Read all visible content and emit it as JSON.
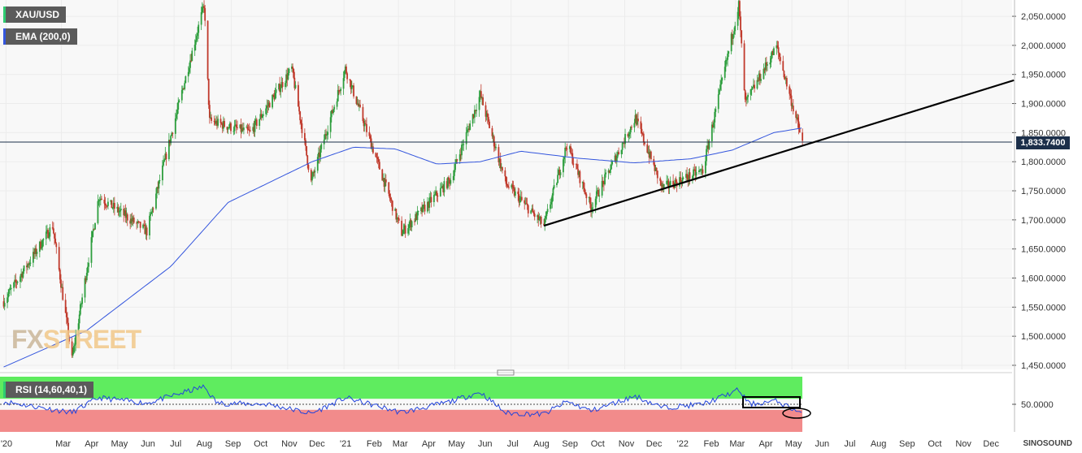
{
  "symbol_tag": "XAU/USD",
  "ema_tag": "EMA (200,0)",
  "rsi_tag": "RSI (14,60,40,1)",
  "watermark_left": "FX",
  "watermark_right": "STREET",
  "brand": "SINOSOUND",
  "last_price_label": "1,833.7400",
  "colors": {
    "ema": "#3355dd",
    "rsi": "#2244dd",
    "rsi_upper_zone": "#5fec5f",
    "rsi_lower_zone": "#f28b8b",
    "candle_up": "#2e9e3e",
    "candle_down": "#c0392b",
    "trendline": "#000000",
    "price_line": "#1c2f4a"
  },
  "chart_data": {
    "type": "candlestick",
    "price_axis": {
      "ticks": [
        "2,050.0000",
        "2,000.0000",
        "1,950.0000",
        "1,900.0000",
        "1,850.0000",
        "1,800.0000",
        "1,750.0000",
        "1,700.0000",
        "1,650.0000",
        "1,600.0000",
        "1,550.0000",
        "1,500.0000",
        "1,450.0000"
      ],
      "range": [
        1443,
        2078
      ]
    },
    "rsi_axis": {
      "ticks": [
        "50.0000"
      ],
      "range": [
        0,
        100
      ]
    },
    "time_axis": {
      "labels": [
        "'20",
        "Mar",
        "Apr",
        "May",
        "Jun",
        "Jul",
        "Aug",
        "Sep",
        "Oct",
        "Nov",
        "Dec",
        "'21",
        "Feb",
        "Mar",
        "Apr",
        "May",
        "Jun",
        "Jul",
        "Aug",
        "Sep",
        "Oct",
        "Nov",
        "Dec",
        "'22",
        "Feb",
        "Mar",
        "Apr",
        "May",
        "Jun",
        "Jul",
        "Aug",
        "Sep",
        "Oct",
        "Nov",
        "Dec"
      ]
    },
    "last_price": 1833.74,
    "price_path": [
      [
        "2020-01-02",
        1560
      ],
      [
        "2020-02-24",
        1690
      ],
      [
        "2020-03-16",
        1460
      ],
      [
        "2020-04-14",
        1740
      ],
      [
        "2020-06-05",
        1680
      ],
      [
        "2020-08-06",
        2070
      ],
      [
        "2020-08-12",
        1870
      ],
      [
        "2020-09-25",
        1850
      ],
      [
        "2020-11-09",
        1960
      ],
      [
        "2020-11-30",
        1765
      ],
      [
        "2021-01-06",
        1960
      ],
      [
        "2021-03-08",
        1678
      ],
      [
        "2021-04-30",
        1770
      ],
      [
        "2021-06-01",
        1915
      ],
      [
        "2021-06-29",
        1762
      ],
      [
        "2021-08-09",
        1690
      ],
      [
        "2021-09-03",
        1830
      ],
      [
        "2021-09-29",
        1722
      ],
      [
        "2021-11-16",
        1875
      ],
      [
        "2021-12-15",
        1755
      ],
      [
        "2022-01-28",
        1785
      ],
      [
        "2022-03-08",
        2070
      ],
      [
        "2022-03-15",
        1900
      ],
      [
        "2022-04-18",
        1998
      ],
      [
        "2022-05-16",
        1833.74
      ]
    ],
    "ema_200": [
      [
        "2020-01-02",
        1447
      ],
      [
        "2020-04-01",
        1510
      ],
      [
        "2020-07-01",
        1620
      ],
      [
        "2020-09-01",
        1730
      ],
      [
        "2020-12-01",
        1800
      ],
      [
        "2021-01-15",
        1825
      ],
      [
        "2021-03-01",
        1822
      ],
      [
        "2021-04-15",
        1796
      ],
      [
        "2021-06-01",
        1800
      ],
      [
        "2021-07-15",
        1818
      ],
      [
        "2021-09-15",
        1806
      ],
      [
        "2021-11-15",
        1798
      ],
      [
        "2022-01-15",
        1805
      ],
      [
        "2022-03-01",
        1820
      ],
      [
        "2022-04-15",
        1850
      ],
      [
        "2022-05-16",
        1858
      ]
    ],
    "trendline": [
      [
        "2021-08-09",
        1690
      ],
      [
        "2022-12-31",
        1940
      ]
    ],
    "rsi_zones": {
      "upper": [
        60,
        100
      ],
      "lower": [
        0,
        40
      ],
      "mid": 50
    },
    "rsi_path": [
      [
        "2020-01-02",
        55
      ],
      [
        "2020-03-16",
        35
      ],
      [
        "2020-04-14",
        62
      ],
      [
        "2020-06-05",
        52
      ],
      [
        "2020-08-06",
        82
      ],
      [
        "2020-08-20",
        52
      ],
      [
        "2020-10-15",
        50
      ],
      [
        "2020-11-30",
        33
      ],
      [
        "2021-01-06",
        62
      ],
      [
        "2021-03-08",
        35
      ],
      [
        "2021-04-30",
        55
      ],
      [
        "2021-06-01",
        72
      ],
      [
        "2021-06-29",
        34
      ],
      [
        "2021-08-09",
        32
      ],
      [
        "2021-09-03",
        55
      ],
      [
        "2021-09-29",
        38
      ],
      [
        "2021-11-16",
        65
      ],
      [
        "2021-12-15",
        44
      ],
      [
        "2022-01-28",
        50
      ],
      [
        "2022-03-08",
        76
      ],
      [
        "2022-03-20",
        50
      ],
      [
        "2022-04-18",
        56
      ],
      [
        "2022-05-16",
        33
      ]
    ]
  }
}
